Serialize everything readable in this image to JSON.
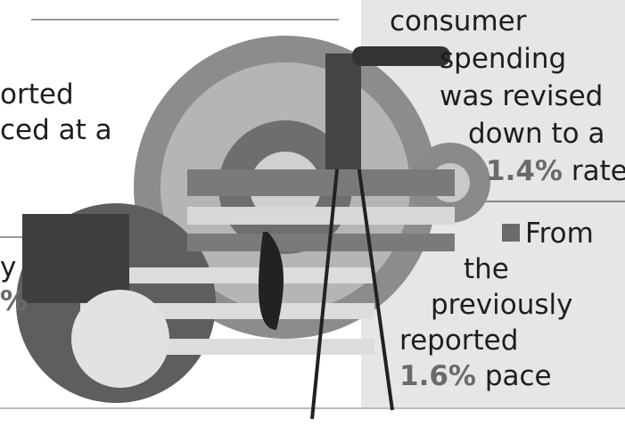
{
  "left_text": {
    "lines": [
      "orted",
      "ced at a",
      "y",
      "%"
    ]
  },
  "right_text": {
    "lines": [
      "consumer",
      "spending",
      "was revised",
      "down to a"
    ],
    "first_figure": "1.4%",
    "first_unit": "rate",
    "second_lines": [
      "From",
      "the",
      "previously",
      "reported"
    ],
    "second_figure": "1.6%",
    "second_unit": "pace"
  }
}
